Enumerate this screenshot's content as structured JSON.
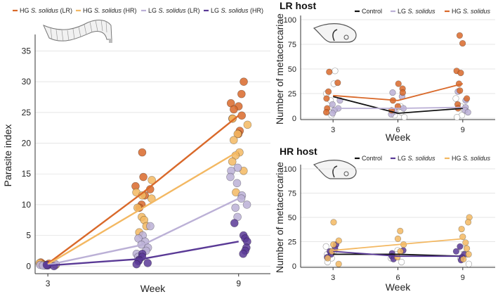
{
  "chart_data": [
    {
      "type": "scatter",
      "panel": "left",
      "title": "",
      "ylabel": "Parasite index",
      "xlabel": "Week",
      "x_ticks": [
        "3",
        "9"
      ],
      "y_ticks": [
        "0",
        "5",
        "10",
        "15",
        "20",
        "25",
        "30",
        "35"
      ],
      "xlim": [
        2.6,
        10
      ],
      "ylim": [
        -1,
        37
      ],
      "legend_position": "top",
      "series": [
        {
          "name": "HG S. solidus (LR)",
          "legend_prefix": "HG",
          "legend_species": "S. solidus",
          "legend_suffix": "(LR)",
          "color": "#d9692a",
          "line": [
            [
              3,
              0.4
            ],
            [
              6,
              12.0
            ],
            [
              9,
              24.5
            ]
          ],
          "points": [
            [
              3,
              0.2
            ],
            [
              3,
              0.4
            ],
            [
              3,
              0.6
            ],
            [
              3,
              0.3
            ],
            [
              6,
              18.5
            ],
            [
              6,
              14.5
            ],
            [
              6,
              13.0
            ],
            [
              6,
              12.5
            ],
            [
              6,
              11.5
            ],
            [
              6,
              10.0
            ],
            [
              6,
              9.5
            ],
            [
              9,
              30.0
            ],
            [
              9,
              28.0
            ],
            [
              9,
              26.5
            ],
            [
              9,
              26.0
            ],
            [
              9,
              25.5
            ],
            [
              9,
              24.5
            ],
            [
              9,
              24.0
            ],
            [
              9,
              22.0
            ],
            [
              9,
              21.5
            ]
          ]
        },
        {
          "name": "HG S. solidus (HR)",
          "legend_prefix": "HG",
          "legend_species": "S. solidus",
          "legend_suffix": "(HR)",
          "color": "#f3b862",
          "line": [
            [
              3,
              0.3
            ],
            [
              6,
              9.5
            ],
            [
              9,
              18.7
            ]
          ],
          "points": [
            [
              3,
              0.3
            ],
            [
              3,
              0.5
            ],
            [
              3,
              0.2
            ],
            [
              6,
              14.0
            ],
            [
              6,
              12.0
            ],
            [
              6,
              11.5
            ],
            [
              6,
              11.0
            ],
            [
              6,
              9.5
            ],
            [
              6,
              8.0
            ],
            [
              6,
              7.5
            ],
            [
              6,
              6.5
            ],
            [
              6,
              5.5
            ],
            [
              9,
              24.0
            ],
            [
              9,
              23.0
            ],
            [
              9,
              21.5
            ],
            [
              9,
              20.5
            ],
            [
              9,
              18.5
            ],
            [
              9,
              18.0
            ],
            [
              9,
              17.0
            ],
            [
              9,
              15.5
            ],
            [
              9,
              12.0
            ]
          ]
        },
        {
          "name": "LG S. solidus (LR)",
          "legend_prefix": "LG",
          "legend_species": "S. solidus",
          "legend_suffix": "(LR)",
          "color": "#bbb0d6",
          "line": [
            [
              3,
              0.2
            ],
            [
              6,
              3.5
            ],
            [
              9,
              11.0
            ]
          ],
          "points": [
            [
              3,
              0.1
            ],
            [
              3,
              0.2
            ],
            [
              3,
              0.3
            ],
            [
              3,
              0.1
            ],
            [
              6,
              6.5
            ],
            [
              6,
              5.0
            ],
            [
              6,
              4.5
            ],
            [
              6,
              4.0
            ],
            [
              6,
              3.5
            ],
            [
              6,
              3.0
            ],
            [
              6,
              2.5
            ],
            [
              6,
              2.0
            ],
            [
              6,
              1.5
            ],
            [
              9,
              16.0
            ],
            [
              9,
              15.5
            ],
            [
              9,
              14.5
            ],
            [
              9,
              13.5
            ],
            [
              9,
              11.5
            ],
            [
              9,
              11.0
            ],
            [
              9,
              10.0
            ],
            [
              9,
              9.5
            ],
            [
              9,
              8.0
            ]
          ]
        },
        {
          "name": "LG S. solidus (HR)",
          "legend_prefix": "LG",
          "legend_species": "S. solidus",
          "legend_suffix": "(HR)",
          "color": "#5a3a96",
          "line": [
            [
              3,
              0.1
            ],
            [
              6,
              1.2
            ],
            [
              9,
              4.0
            ]
          ],
          "points": [
            [
              3,
              0.1
            ],
            [
              3,
              0.2
            ],
            [
              3,
              0.0
            ],
            [
              6,
              2.0
            ],
            [
              6,
              1.5
            ],
            [
              6,
              1.0
            ],
            [
              6,
              0.8
            ],
            [
              6,
              0.5
            ],
            [
              6,
              0.3
            ],
            [
              9,
              7.0
            ],
            [
              9,
              5.0
            ],
            [
              9,
              4.5
            ],
            [
              9,
              4.0
            ],
            [
              9,
              3.0
            ],
            [
              9,
              2.5
            ],
            [
              9,
              2.0
            ]
          ]
        }
      ]
    },
    {
      "type": "scatter",
      "panel": "top-right",
      "title": "LR host",
      "ylabel": "Number of metacercariae",
      "xlabel": "Week",
      "x_ticks": [
        "3",
        "6",
        "9"
      ],
      "y_ticks": [
        "0",
        "25",
        "50",
        "75",
        "100"
      ],
      "xlim": [
        1.5,
        10.5
      ],
      "ylim": [
        0,
        100
      ],
      "legend_position": "top",
      "series": [
        {
          "name": "Control",
          "legend_prefix": "Control",
          "legend_species": "",
          "legend_suffix": "",
          "color": "#111111",
          "hollow": true,
          "line": [
            [
              3,
              22
            ],
            [
              6,
              5
            ],
            [
              9,
              10
            ]
          ],
          "points": [
            [
              3,
              48
            ],
            [
              3,
              35
            ],
            [
              3,
              25
            ],
            [
              3,
              18
            ],
            [
              3,
              10
            ],
            [
              3,
              6
            ],
            [
              3,
              3
            ],
            [
              6,
              12
            ],
            [
              6,
              6
            ],
            [
              6,
              3
            ],
            [
              6,
              1
            ],
            [
              9,
              20
            ],
            [
              9,
              12
            ],
            [
              9,
              8
            ],
            [
              9,
              3
            ],
            [
              9,
              1
            ]
          ]
        },
        {
          "name": "LG S. solidus",
          "legend_prefix": "LG",
          "legend_species": "S. solidus",
          "legend_suffix": "",
          "color": "#bbb0d6",
          "line": [
            [
              3,
              10
            ],
            [
              6,
              10
            ],
            [
              9,
              11
            ]
          ],
          "points": [
            [
              3,
              18
            ],
            [
              3,
              14
            ],
            [
              3,
              10
            ],
            [
              3,
              8
            ],
            [
              3,
              5
            ],
            [
              6,
              26
            ],
            [
              6,
              22
            ],
            [
              6,
              10
            ],
            [
              6,
              7
            ],
            [
              6,
              4
            ],
            [
              9,
              27
            ],
            [
              9,
              18
            ],
            [
              9,
              11
            ],
            [
              9,
              8
            ],
            [
              9,
              6
            ]
          ]
        },
        {
          "name": "HG S. solidus",
          "legend_prefix": "HG",
          "legend_species": "S. solidus",
          "legend_suffix": "",
          "color": "#d9692a",
          "line": [
            [
              3,
              23
            ],
            [
              6,
              18
            ],
            [
              9,
              35
            ]
          ],
          "points": [
            [
              3,
              47
            ],
            [
              3,
              36
            ],
            [
              3,
              27
            ],
            [
              3,
              20
            ],
            [
              3,
              10
            ],
            [
              3,
              6
            ],
            [
              6,
              35
            ],
            [
              6,
              30
            ],
            [
              6,
              26
            ],
            [
              6,
              18
            ],
            [
              6,
              12
            ],
            [
              6,
              8
            ],
            [
              9,
              84
            ],
            [
              9,
              76
            ],
            [
              9,
              48
            ],
            [
              9,
              46
            ],
            [
              9,
              35
            ],
            [
              9,
              28
            ],
            [
              9,
              20
            ],
            [
              9,
              14
            ],
            [
              9,
              10
            ]
          ]
        }
      ]
    },
    {
      "type": "scatter",
      "panel": "bottom-right",
      "title": "HR host",
      "ylabel": "Number of metacercariae",
      "xlabel": "Week",
      "x_ticks": [
        "3",
        "6",
        "9"
      ],
      "y_ticks": [
        "0",
        "25",
        "50",
        "75",
        "100"
      ],
      "xlim": [
        1.5,
        10.5
      ],
      "ylim": [
        0,
        100
      ],
      "legend_position": "top",
      "series": [
        {
          "name": "Control",
          "legend_prefix": "Control",
          "legend_species": "",
          "legend_suffix": "",
          "color": "#111111",
          "hollow": true,
          "line": [
            [
              3,
              12
            ],
            [
              6,
              12
            ],
            [
              9,
              10
            ]
          ],
          "points": [
            [
              3,
              20
            ],
            [
              3,
              16
            ],
            [
              3,
              12
            ],
            [
              3,
              8
            ],
            [
              3,
              4
            ],
            [
              6,
              16
            ],
            [
              6,
              12
            ],
            [
              6,
              8
            ],
            [
              6,
              4
            ],
            [
              9,
              18
            ],
            [
              9,
              12
            ],
            [
              9,
              8
            ],
            [
              9,
              2
            ]
          ]
        },
        {
          "name": "LG S. solidus",
          "legend_prefix": "LG",
          "legend_species": "S. solidus",
          "legend_suffix": "",
          "color": "#5a3a96",
          "line": [
            [
              3,
              15
            ],
            [
              6,
              10
            ],
            [
              9,
              10
            ]
          ],
          "points": [
            [
              3,
              22
            ],
            [
              3,
              18
            ],
            [
              3,
              15
            ],
            [
              3,
              12
            ],
            [
              3,
              9
            ],
            [
              6,
              16
            ],
            [
              6,
              13
            ],
            [
              6,
              10
            ],
            [
              6,
              7
            ],
            [
              9,
              20
            ],
            [
              9,
              15
            ],
            [
              9,
              12
            ],
            [
              9,
              9
            ],
            [
              9,
              6
            ]
          ]
        },
        {
          "name": "HG S. solidus",
          "legend_prefix": "HG",
          "legend_species": "S. solidus",
          "legend_suffix": "",
          "color": "#f3b862",
          "line": [
            [
              3,
              16
            ],
            [
              6,
              22
            ],
            [
              9,
              28
            ]
          ],
          "points": [
            [
              3,
              45
            ],
            [
              3,
              26
            ],
            [
              3,
              22
            ],
            [
              3,
              15
            ],
            [
              3,
              8
            ],
            [
              3,
              2
            ],
            [
              6,
              36
            ],
            [
              6,
              28
            ],
            [
              6,
              22
            ],
            [
              6,
              15
            ],
            [
              6,
              9
            ],
            [
              9,
              50
            ],
            [
              9,
              45
            ],
            [
              9,
              38
            ],
            [
              9,
              30
            ],
            [
              9,
              24
            ],
            [
              9,
              18
            ],
            [
              9,
              12
            ],
            [
              9,
              7
            ]
          ]
        }
      ]
    }
  ]
}
